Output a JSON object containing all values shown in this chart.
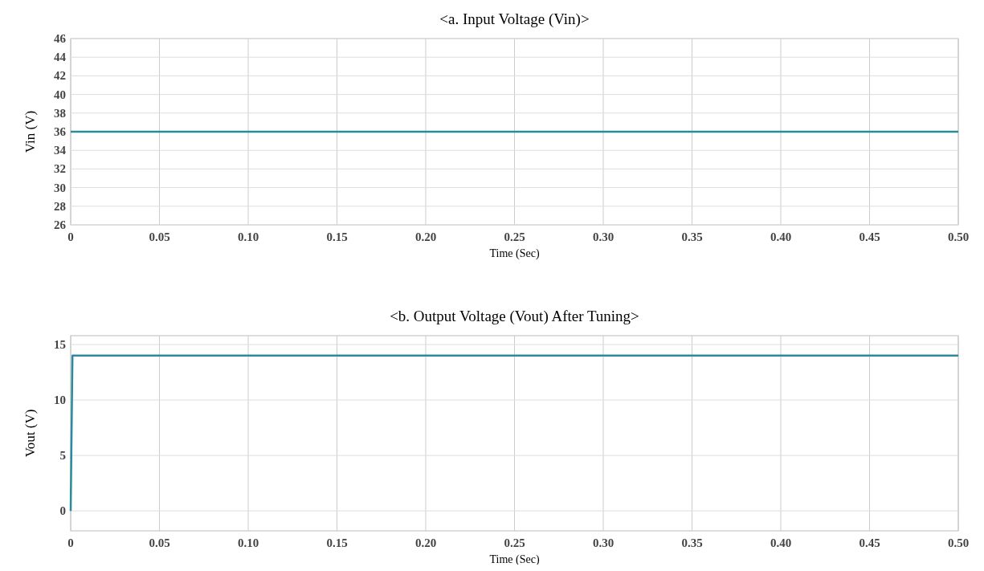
{
  "chart_data": [
    {
      "type": "line",
      "title": "<a. Input Voltage (Vin)>",
      "xlabel": "Time (Sec)",
      "ylabel": "Vin (V)",
      "x": [
        0,
        0.1,
        0.2,
        0.3,
        0.4,
        0.5
      ],
      "series": [
        {
          "color": "#2b8a9c",
          "values": [
            36,
            36,
            36,
            36,
            36,
            36
          ]
        }
      ],
      "xlim": [
        0,
        0.5
      ],
      "xticks": [
        0,
        {
          "value": 0.05,
          "label": "0.05"
        },
        {
          "value": 0.1,
          "label": "0.10"
        },
        {
          "value": 0.15,
          "label": "0.15"
        },
        {
          "value": 0.2,
          "label": "0.20"
        },
        {
          "value": 0.25,
          "label": "0.25"
        },
        {
          "value": 0.3,
          "label": "0.30"
        },
        {
          "value": 0.35,
          "label": "0.35"
        },
        {
          "value": 0.4,
          "label": "0.40"
        },
        {
          "value": 0.45,
          "label": "0.45"
        },
        {
          "value": 0.5,
          "label": "0.50"
        }
      ],
      "ylim": [
        26,
        46
      ],
      "yticks": [
        26,
        28,
        30,
        32,
        34,
        36,
        38,
        40,
        42,
        44,
        46
      ],
      "grid": true
    },
    {
      "type": "line",
      "title": "<b. Output Voltage (Vout) After Tuning>",
      "xlabel": "Time (Sec)",
      "ylabel": "Vout (V)",
      "x": [
        0,
        0.001,
        0.1,
        0.2,
        0.3,
        0.4,
        0.5
      ],
      "series": [
        {
          "color": "#2b8a9c",
          "values": [
            0,
            14,
            14,
            14,
            14,
            14,
            14
          ]
        }
      ],
      "xlim": [
        0,
        0.5
      ],
      "xticks": [
        0,
        {
          "value": 0.05,
          "label": "0.05"
        },
        {
          "value": 0.1,
          "label": "0.10"
        },
        {
          "value": 0.15,
          "label": "0.15"
        },
        {
          "value": 0.2,
          "label": "0.20"
        },
        {
          "value": 0.25,
          "label": "0.25"
        },
        {
          "value": 0.3,
          "label": "0.30"
        },
        {
          "value": 0.35,
          "label": "0.35"
        },
        {
          "value": 0.4,
          "label": "0.40"
        },
        {
          "value": 0.45,
          "label": "0.45"
        },
        {
          "value": 0.5,
          "label": "0.50"
        }
      ],
      "ylim": [
        -1.8,
        15.8
      ],
      "yticks": [
        0,
        5,
        10,
        15
      ],
      "grid": true
    }
  ]
}
